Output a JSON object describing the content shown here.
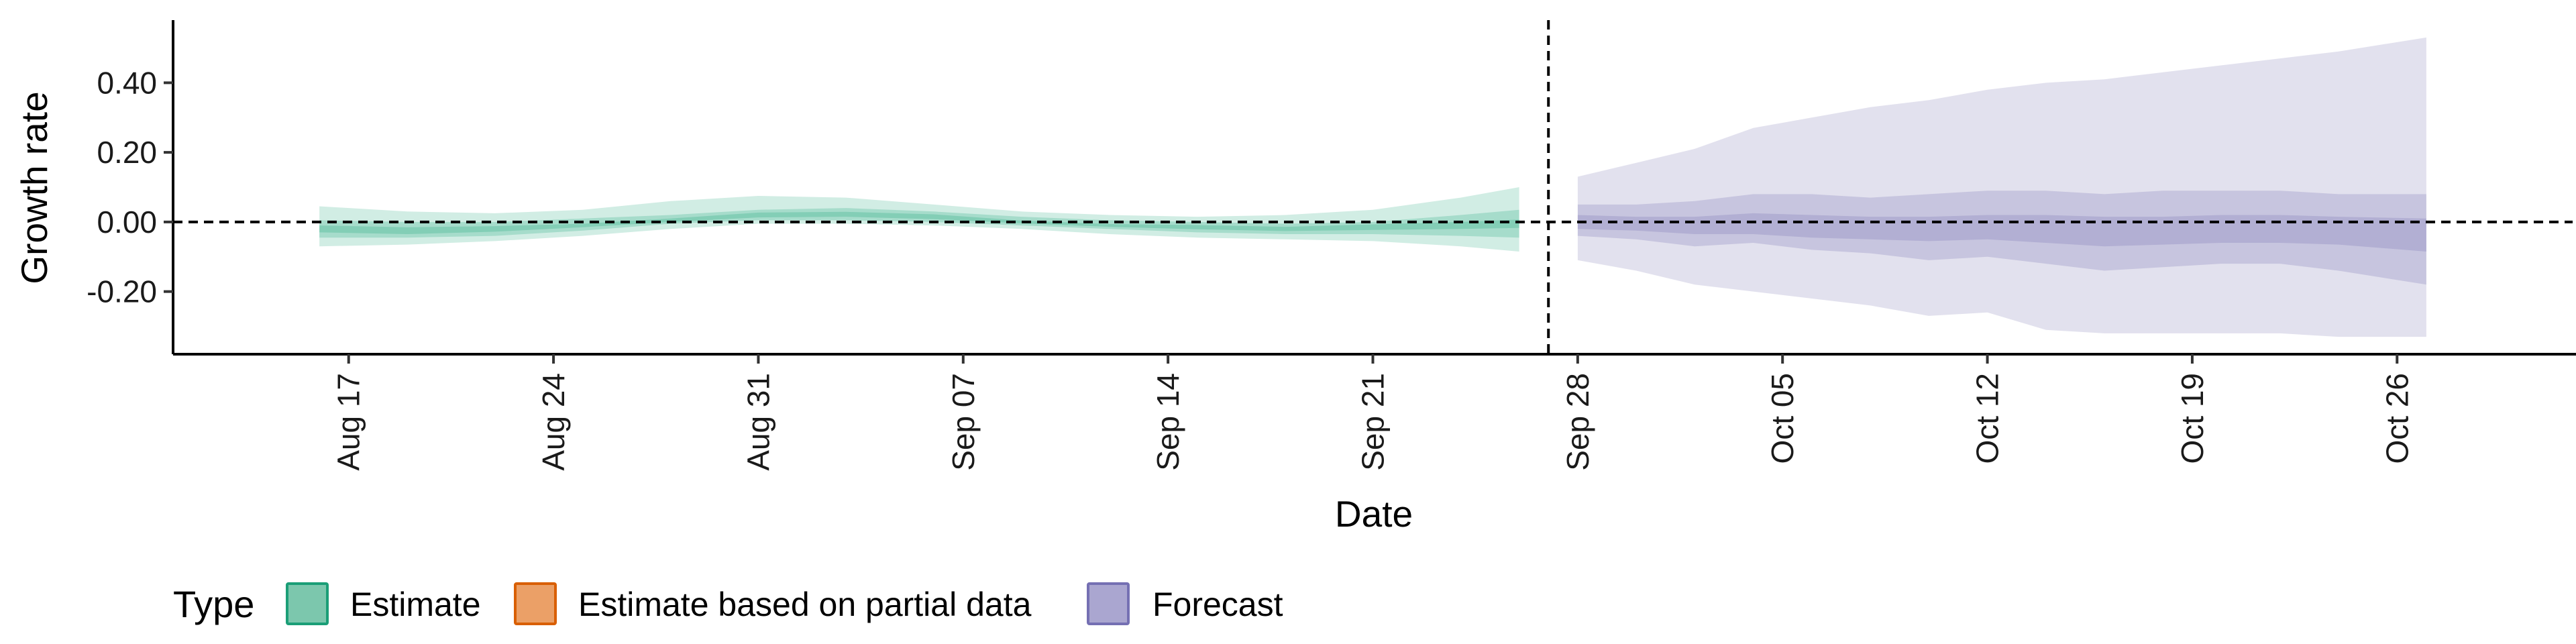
{
  "chart_data": {
    "type": "area",
    "xlabel": "Date",
    "ylabel": "Growth rate",
    "x_ticks": [
      "Aug 17",
      "Aug 24",
      "Aug 31",
      "Sep 07",
      "Sep 14",
      "Sep 21",
      "Sep 28",
      "Oct 05",
      "Oct 12",
      "Oct 19",
      "Oct 26"
    ],
    "x_tick_dates": [
      "2020-08-17",
      "2020-08-24",
      "2020-08-31",
      "2020-09-07",
      "2020-09-14",
      "2020-09-21",
      "2020-09-28",
      "2020-10-05",
      "2020-10-12",
      "2020-10-19",
      "2020-10-26"
    ],
    "y_ticks": [
      "0.40",
      "0.20",
      "0.00",
      "-0.20"
    ],
    "y_tick_values": [
      0.4,
      0.2,
      0.0,
      -0.2
    ],
    "xlim": [
      "2020-08-11",
      "2020-11-01"
    ],
    "ylim": [
      -0.38,
      0.58
    ],
    "reference_lines": {
      "y": 0.0,
      "x": "2020-09-27"
    },
    "grid": false,
    "legend": {
      "title": "Type",
      "position": "bottom-left",
      "items": [
        {
          "label": "Estimate",
          "color": "#66c2a5",
          "border": "#1b9e77"
        },
        {
          "label": "Estimate based on partial data",
          "color": "#e79a5d",
          "border": "#d95f02"
        },
        {
          "label": "Forecast",
          "color": "#a09cc8",
          "border": "#7570b3"
        }
      ]
    },
    "series": [
      {
        "name": "Estimate",
        "color": "#66c2a5",
        "x": [
          "2020-08-16",
          "2020-08-19",
          "2020-08-22",
          "2020-08-25",
          "2020-08-28",
          "2020-08-31",
          "2020-09-03",
          "2020-09-06",
          "2020-09-09",
          "2020-09-12",
          "2020-09-15",
          "2020-09-18",
          "2020-09-21",
          "2020-09-24",
          "2020-09-26"
        ],
        "median": [
          -0.02,
          -0.025,
          -0.02,
          -0.01,
          0.005,
          0.02,
          0.022,
          0.015,
          0.0,
          -0.01,
          -0.015,
          -0.02,
          -0.015,
          -0.01,
          -0.005
        ],
        "lower_90": [
          -0.07,
          -0.065,
          -0.055,
          -0.04,
          -0.02,
          -0.005,
          -0.005,
          -0.01,
          -0.02,
          -0.035,
          -0.045,
          -0.05,
          -0.055,
          -0.07,
          -0.085
        ],
        "upper_90": [
          0.045,
          0.03,
          0.025,
          0.035,
          0.06,
          0.075,
          0.07,
          0.05,
          0.03,
          0.02,
          0.015,
          0.02,
          0.035,
          0.07,
          0.1
        ],
        "lower_50": [
          -0.045,
          -0.045,
          -0.04,
          -0.025,
          -0.005,
          0.005,
          0.005,
          0.0,
          -0.01,
          -0.02,
          -0.03,
          -0.035,
          -0.035,
          -0.04,
          -0.045
        ],
        "upper_50": [
          0.005,
          0.0,
          0.0,
          0.01,
          0.02,
          0.035,
          0.04,
          0.03,
          0.015,
          0.005,
          0.0,
          -0.005,
          0.0,
          0.02,
          0.035
        ],
        "lower_20": [
          -0.03,
          -0.035,
          -0.028,
          -0.015,
          0.0,
          0.013,
          0.015,
          0.008,
          -0.004,
          -0.014,
          -0.021,
          -0.026,
          -0.023,
          -0.02,
          -0.017
        ],
        "upper_20": [
          -0.01,
          -0.015,
          -0.012,
          -0.005,
          0.01,
          0.027,
          0.029,
          0.022,
          0.004,
          -0.006,
          -0.009,
          -0.014,
          -0.007,
          0.0,
          0.007
        ]
      },
      {
        "name": "Forecast",
        "color": "#a09cc8",
        "x": [
          "2020-09-28",
          "2020-09-30",
          "2020-10-02",
          "2020-10-04",
          "2020-10-06",
          "2020-10-08",
          "2020-10-10",
          "2020-10-12",
          "2020-10-14",
          "2020-10-16",
          "2020-10-18",
          "2020-10-20",
          "2020-10-22",
          "2020-10-24",
          "2020-10-27"
        ],
        "median": [
          0.0,
          -0.005,
          -0.01,
          -0.01,
          -0.015,
          -0.02,
          -0.02,
          -0.02,
          -0.025,
          -0.03,
          -0.03,
          -0.03,
          -0.03,
          -0.03,
          -0.04
        ],
        "lower_90": [
          -0.11,
          -0.14,
          -0.18,
          -0.2,
          -0.22,
          -0.24,
          -0.27,
          -0.26,
          -0.31,
          -0.32,
          -0.32,
          -0.32,
          -0.32,
          -0.33,
          -0.33
        ],
        "upper_90": [
          0.13,
          0.17,
          0.21,
          0.27,
          0.3,
          0.33,
          0.35,
          0.38,
          0.4,
          0.41,
          0.43,
          0.45,
          0.47,
          0.49,
          0.53
        ],
        "lower_50": [
          -0.04,
          -0.05,
          -0.07,
          -0.06,
          -0.08,
          -0.09,
          -0.11,
          -0.1,
          -0.12,
          -0.14,
          -0.13,
          -0.12,
          -0.12,
          -0.14,
          -0.18
        ],
        "upper_50": [
          0.05,
          0.05,
          0.06,
          0.08,
          0.08,
          0.07,
          0.08,
          0.09,
          0.09,
          0.08,
          0.09,
          0.09,
          0.09,
          0.08,
          0.08
        ],
        "lower_20": [
          -0.02,
          -0.025,
          -0.035,
          -0.035,
          -0.045,
          -0.05,
          -0.055,
          -0.05,
          -0.06,
          -0.07,
          -0.065,
          -0.06,
          -0.06,
          -0.065,
          -0.085
        ],
        "upper_20": [
          0.02,
          0.015,
          0.015,
          0.025,
          0.02,
          0.015,
          0.015,
          0.02,
          0.02,
          0.015,
          0.015,
          0.02,
          0.02,
          0.015,
          0.01
        ]
      }
    ]
  }
}
